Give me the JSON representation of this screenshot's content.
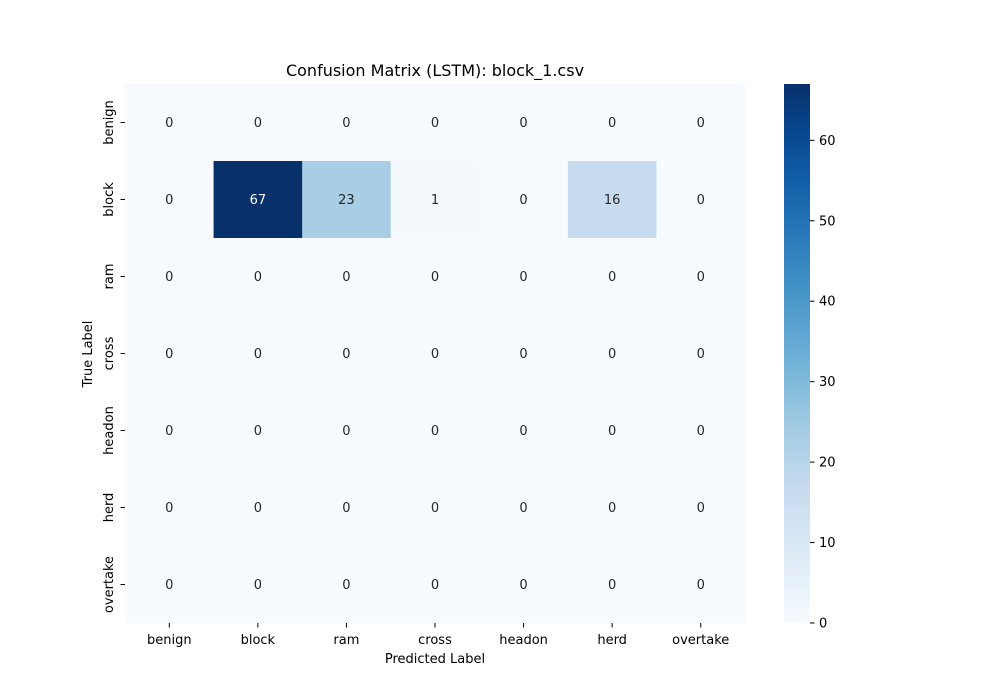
{
  "chart_data": {
    "type": "heatmap",
    "title": "Confusion Matrix (LSTM): block_1.csv",
    "xlabel": "Predicted Label",
    "ylabel": "True Label",
    "x_categories": [
      "benign",
      "block",
      "ram",
      "cross",
      "headon",
      "herd",
      "overtake"
    ],
    "y_categories": [
      "benign",
      "block",
      "ram",
      "cross",
      "headon",
      "herd",
      "overtake"
    ],
    "values": [
      [
        0,
        0,
        0,
        0,
        0,
        0,
        0
      ],
      [
        0,
        67,
        23,
        1,
        0,
        16,
        0
      ],
      [
        0,
        0,
        0,
        0,
        0,
        0,
        0
      ],
      [
        0,
        0,
        0,
        0,
        0,
        0,
        0
      ],
      [
        0,
        0,
        0,
        0,
        0,
        0,
        0
      ],
      [
        0,
        0,
        0,
        0,
        0,
        0,
        0
      ],
      [
        0,
        0,
        0,
        0,
        0,
        0,
        0
      ]
    ],
    "colormap": "Blues",
    "vmin": 0,
    "vmax": 67,
    "colorbar_ticks": [
      0,
      10,
      20,
      30,
      40,
      50,
      60
    ],
    "annotated": true,
    "grid": false,
    "colorbar_position": "right"
  }
}
